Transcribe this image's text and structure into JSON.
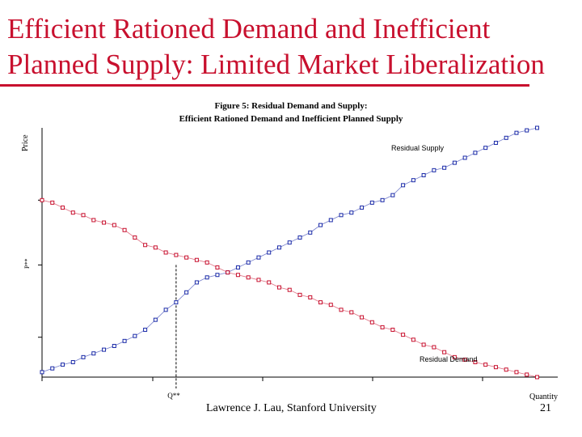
{
  "slide": {
    "title_line1": "Efficient Rationed Demand and Inefficient",
    "title_line2": "Planned Supply: Limited Market Liberalization",
    "title_color": "#c8102e",
    "footer_author": "Lawrence J. Lau, Stanford University",
    "page_number": "21"
  },
  "chart_data": {
    "type": "line",
    "title": "Figure 5: Residual Demand and Supply:",
    "subtitle": "Efficient Rationed Demand and Inefficient Planned Supply",
    "xlabel": "Quantity",
    "ylabel": "Price",
    "xlim": [
      0,
      1
    ],
    "ylim": [
      0,
      1
    ],
    "equilibrium": {
      "x_label": "Q**",
      "y_label": "P**",
      "x": 0.26,
      "y": 0.45
    },
    "grid": false,
    "series": [
      {
        "name": "Residual Supply",
        "marker_color": "#1a2aa8",
        "points": [
          [
            0.0,
            0.02
          ],
          [
            0.02,
            0.035
          ],
          [
            0.04,
            0.05
          ],
          [
            0.06,
            0.06
          ],
          [
            0.08,
            0.08
          ],
          [
            0.1,
            0.095
          ],
          [
            0.12,
            0.11
          ],
          [
            0.14,
            0.125
          ],
          [
            0.16,
            0.145
          ],
          [
            0.18,
            0.165
          ],
          [
            0.2,
            0.19
          ],
          [
            0.22,
            0.23
          ],
          [
            0.24,
            0.27
          ],
          [
            0.26,
            0.3
          ],
          [
            0.28,
            0.34
          ],
          [
            0.3,
            0.38
          ],
          [
            0.32,
            0.4
          ],
          [
            0.34,
            0.41
          ],
          [
            0.36,
            0.42
          ],
          [
            0.38,
            0.44
          ],
          [
            0.4,
            0.46
          ],
          [
            0.42,
            0.48
          ],
          [
            0.44,
            0.5
          ],
          [
            0.46,
            0.52
          ],
          [
            0.48,
            0.54
          ],
          [
            0.5,
            0.56
          ],
          [
            0.52,
            0.58
          ],
          [
            0.54,
            0.61
          ],
          [
            0.56,
            0.63
          ],
          [
            0.58,
            0.65
          ],
          [
            0.6,
            0.66
          ],
          [
            0.62,
            0.68
          ],
          [
            0.64,
            0.7
          ],
          [
            0.66,
            0.71
          ],
          [
            0.68,
            0.73
          ],
          [
            0.7,
            0.77
          ],
          [
            0.72,
            0.79
          ],
          [
            0.74,
            0.81
          ],
          [
            0.76,
            0.83
          ],
          [
            0.78,
            0.84
          ],
          [
            0.8,
            0.86
          ],
          [
            0.82,
            0.88
          ],
          [
            0.84,
            0.9
          ],
          [
            0.86,
            0.92
          ],
          [
            0.88,
            0.94
          ],
          [
            0.9,
            0.96
          ],
          [
            0.92,
            0.98
          ],
          [
            0.94,
            0.99
          ],
          [
            0.96,
            1.0
          ]
        ]
      },
      {
        "name": "Residual Demand",
        "marker_color": "#c8102e",
        "points": [
          [
            0.0,
            0.71
          ],
          [
            0.02,
            0.7
          ],
          [
            0.04,
            0.68
          ],
          [
            0.06,
            0.66
          ],
          [
            0.08,
            0.65
          ],
          [
            0.1,
            0.63
          ],
          [
            0.12,
            0.62
          ],
          [
            0.14,
            0.61
          ],
          [
            0.16,
            0.59
          ],
          [
            0.18,
            0.56
          ],
          [
            0.2,
            0.53
          ],
          [
            0.22,
            0.52
          ],
          [
            0.24,
            0.5
          ],
          [
            0.26,
            0.49
          ],
          [
            0.28,
            0.48
          ],
          [
            0.3,
            0.47
          ],
          [
            0.32,
            0.46
          ],
          [
            0.34,
            0.44
          ],
          [
            0.36,
            0.42
          ],
          [
            0.38,
            0.41
          ],
          [
            0.4,
            0.4
          ],
          [
            0.42,
            0.39
          ],
          [
            0.44,
            0.38
          ],
          [
            0.46,
            0.36
          ],
          [
            0.48,
            0.35
          ],
          [
            0.5,
            0.33
          ],
          [
            0.52,
            0.32
          ],
          [
            0.54,
            0.3
          ],
          [
            0.56,
            0.29
          ],
          [
            0.58,
            0.27
          ],
          [
            0.6,
            0.26
          ],
          [
            0.62,
            0.24
          ],
          [
            0.64,
            0.22
          ],
          [
            0.66,
            0.2
          ],
          [
            0.68,
            0.19
          ],
          [
            0.7,
            0.17
          ],
          [
            0.72,
            0.15
          ],
          [
            0.74,
            0.13
          ],
          [
            0.76,
            0.12
          ],
          [
            0.78,
            0.1
          ],
          [
            0.8,
            0.08
          ],
          [
            0.82,
            0.07
          ],
          [
            0.84,
            0.06
          ],
          [
            0.86,
            0.05
          ],
          [
            0.88,
            0.04
          ],
          [
            0.9,
            0.03
          ],
          [
            0.92,
            0.02
          ],
          [
            0.94,
            0.01
          ],
          [
            0.96,
            0.0
          ]
        ]
      }
    ]
  }
}
